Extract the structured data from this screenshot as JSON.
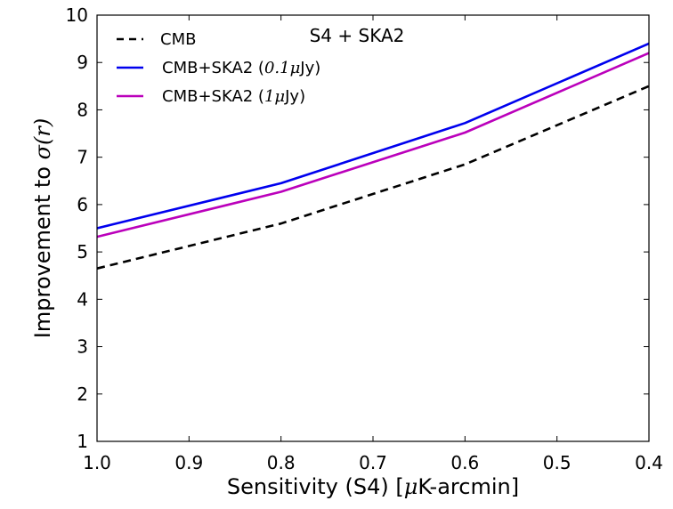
{
  "chart_data": {
    "type": "line",
    "x": [
      1.0,
      0.8,
      0.6,
      0.4
    ],
    "xlim": [
      1.0,
      0.4
    ],
    "ylim": [
      1,
      10
    ],
    "xticks": [
      "1.0",
      "0.9",
      "0.8",
      "0.7",
      "0.6",
      "0.5",
      "0.4"
    ],
    "yticks": [
      "1",
      "2",
      "3",
      "4",
      "5",
      "6",
      "7",
      "8",
      "9",
      "10"
    ],
    "xlabel_pre": "Sensitivity (S4) [",
    "xlabel_mu": "μ",
    "xlabel_post": "K-arcmin]",
    "ylabel_pre": "Improvement to ",
    "ylabel_math": "σ(r)",
    "annotation": "S4 + SKA2",
    "grid": false,
    "legend_position": "top-left",
    "series": [
      {
        "name": "CMB",
        "values": [
          4.65,
          5.6,
          6.85,
          8.5
        ],
        "color": "#000000",
        "dash": true
      },
      {
        "name_pre": "CMB+SKA2 (",
        "name_math": "0.1μ",
        "name_post": "Jy)",
        "values": [
          5.5,
          6.45,
          7.72,
          9.4
        ],
        "color": "#0000ee",
        "dash": false
      },
      {
        "name_pre": "CMB+SKA2 (",
        "name_math": "1μ",
        "name_post": "Jy)",
        "values": [
          5.32,
          6.27,
          7.52,
          9.2
        ],
        "color": "#bb00bb",
        "dash": false
      }
    ]
  }
}
